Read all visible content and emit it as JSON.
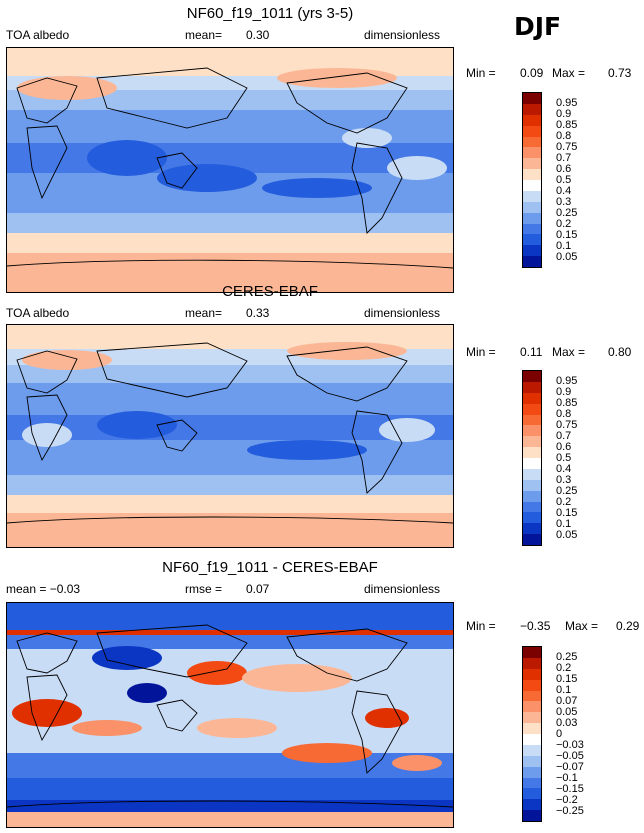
{
  "season": "DJF",
  "unit_label": "dimensionless",
  "panels": [
    {
      "title": "NF60_f19_1011 (yrs 3-5)",
      "left": "TOA albedo",
      "mid_label": "mean=",
      "mid_value": "0.30",
      "right": "dimensionless",
      "min_label": "Min =",
      "min_value": "0.09",
      "max_label": "Max =",
      "max_value": "0.73"
    },
    {
      "title": "CERES-EBAF",
      "left": "TOA albedo",
      "mid_label": "mean=",
      "mid_value": "0.33",
      "right": "dimensionless",
      "min_label": "Min =",
      "min_value": "0.11",
      "max_label": "Max =",
      "max_value": "0.80"
    },
    {
      "title": "NF60_f19_1011 - CERES-EBAF",
      "left": "mean =   −0.03",
      "mid_label": "rmse =",
      "mid_value": "0.07",
      "right": "dimensionless",
      "min_label": "Min =",
      "min_value": "−0.35",
      "max_label": "Max =",
      "max_value": "0.29"
    }
  ],
  "chart_data": [
    {
      "type": "heatmap",
      "title": "NF60_f19_1011 (yrs 3-5)",
      "variable": "TOA albedo",
      "mean": 0.3,
      "min": 0.09,
      "max": 0.73,
      "levels": [
        "0.95",
        "0.9",
        "0.85",
        "0.8",
        "0.75",
        "0.7",
        "0.6",
        "0.5",
        "0.4",
        "0.3",
        "0.25",
        "0.2",
        "0.15",
        "0.1",
        "0.05"
      ],
      "colors": [
        "#7b0000",
        "#bb1a00",
        "#e03000",
        "#f24a12",
        "#f76a33",
        "#fa9168",
        "#fbb795",
        "#fde0c6",
        "#ffffff",
        "#c9dcf6",
        "#9fc1f2",
        "#6d9cec",
        "#4478e6",
        "#235cdd",
        "#0b36c4",
        "#02149a"
      ]
    },
    {
      "type": "heatmap",
      "title": "CERES-EBAF",
      "variable": "TOA albedo",
      "mean": 0.33,
      "min": 0.11,
      "max": 0.8,
      "levels": [
        "0.95",
        "0.9",
        "0.85",
        "0.8",
        "0.75",
        "0.7",
        "0.6",
        "0.5",
        "0.4",
        "0.3",
        "0.25",
        "0.2",
        "0.15",
        "0.1",
        "0.05"
      ],
      "colors": [
        "#7b0000",
        "#bb1a00",
        "#e03000",
        "#f24a12",
        "#f76a33",
        "#fa9168",
        "#fbb795",
        "#fde0c6",
        "#ffffff",
        "#c9dcf6",
        "#9fc1f2",
        "#6d9cec",
        "#4478e6",
        "#235cdd",
        "#0b36c4",
        "#02149a"
      ]
    },
    {
      "type": "heatmap",
      "title": "NF60_f19_1011 - CERES-EBAF",
      "mean": -0.03,
      "rmse": 0.07,
      "min": -0.35,
      "max": 0.29,
      "levels": [
        "0.25",
        "0.2",
        "0.15",
        "0.1",
        "0.07",
        "0.05",
        "0.03",
        "0",
        "−0.03",
        "−0.05",
        "−0.07",
        "−0.1",
        "−0.15",
        "−0.2",
        "−0.25"
      ],
      "colors": [
        "#7b0000",
        "#bb1a00",
        "#e03000",
        "#f24a12",
        "#f76a33",
        "#fa9168",
        "#fbb795",
        "#fde0c6",
        "#ffffff",
        "#c9dcf6",
        "#9fc1f2",
        "#6d9cec",
        "#4478e6",
        "#235cdd",
        "#0b36c4",
        "#02149a"
      ]
    }
  ]
}
